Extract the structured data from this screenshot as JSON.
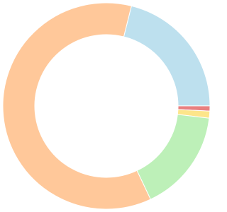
{
  "chart_data": {
    "type": "doughnut",
    "values": [
      21.1,
      0.8,
      1.1,
      16.1,
      60.9
    ],
    "colors": [
      "#bde0ee",
      "#e88080",
      "#fde58a",
      "#bdf0b8",
      "#ffc89a"
    ]
  }
}
